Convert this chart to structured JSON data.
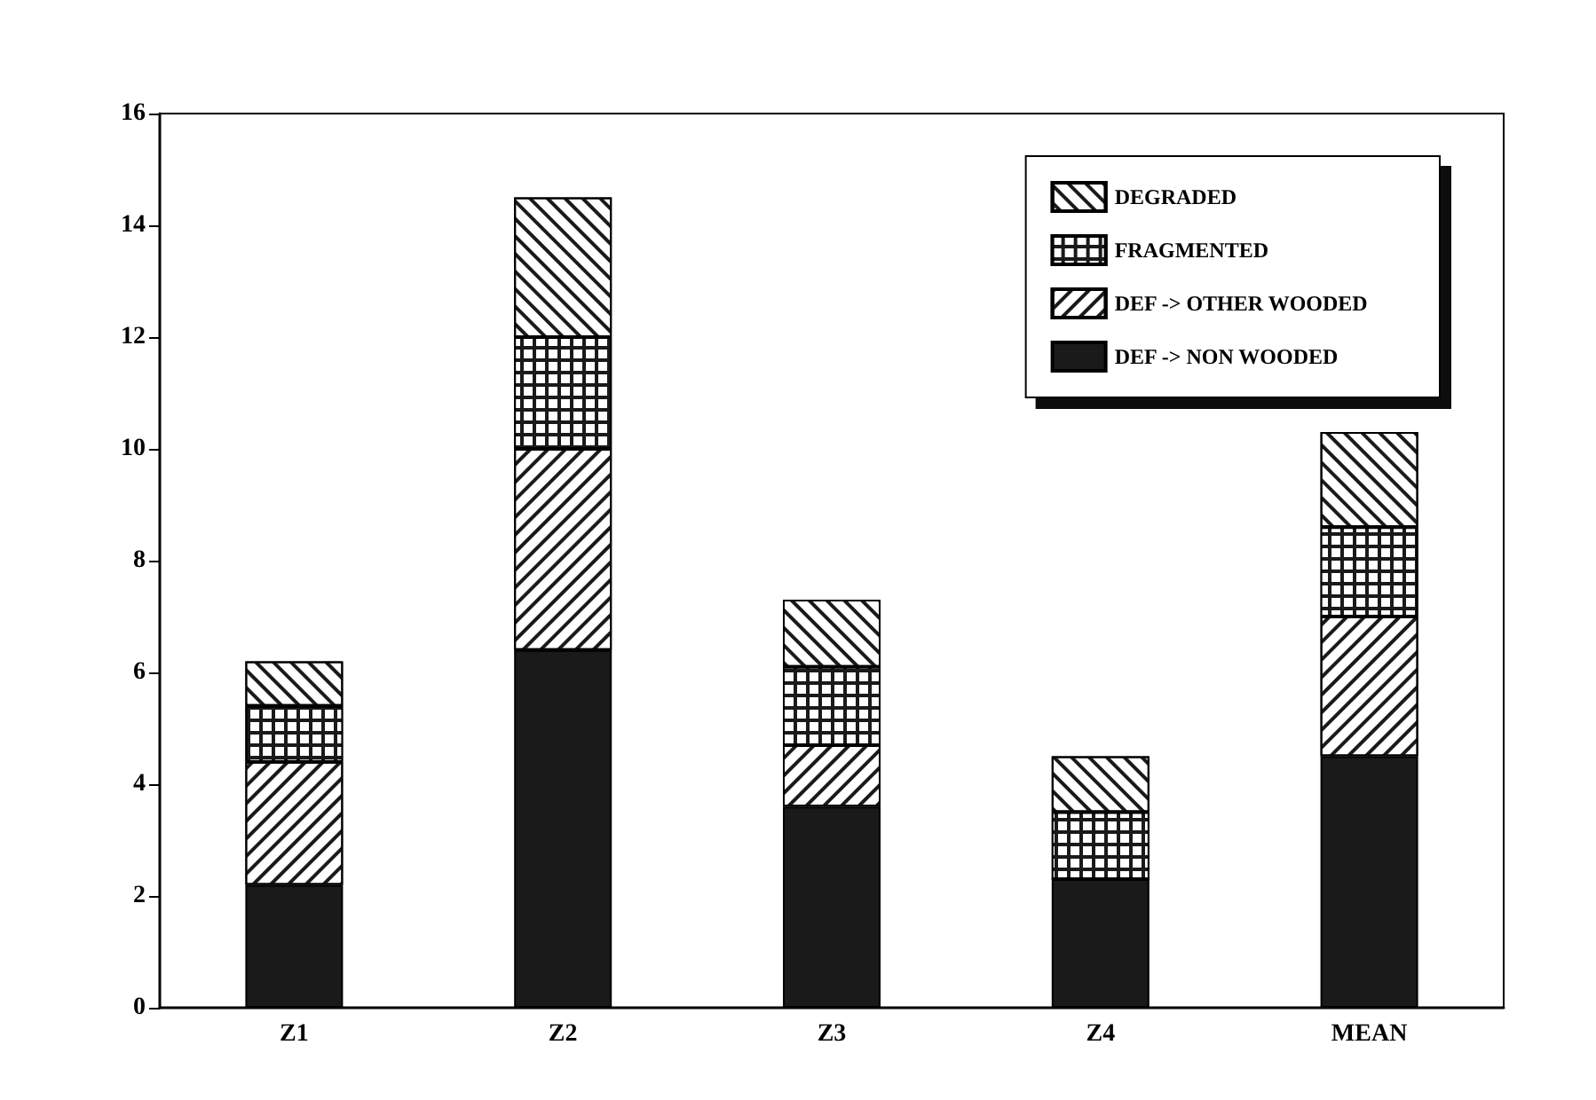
{
  "chart_data": {
    "type": "bar",
    "stacked": true,
    "categories": [
      "Z1",
      "Z2",
      "Z3",
      "Z4",
      "MEAN"
    ],
    "series": [
      {
        "name": "DEF -> NON WOODED",
        "color": "#1a1a1a",
        "values": [
          2.2,
          6.4,
          3.6,
          2.3,
          4.5
        ]
      },
      {
        "name": "DEF -> OTHER WOODED",
        "color": "#ffffff",
        "values": [
          2.2,
          3.6,
          1.1,
          0,
          2.5
        ]
      },
      {
        "name": "FRAGMENTED",
        "color": "#1a1a1a",
        "values": [
          1.0,
          2.0,
          1.4,
          1.2,
          1.6
        ]
      },
      {
        "name": "DEGRADED",
        "color": "#ffffff",
        "values": [
          0.8,
          2.5,
          1.2,
          1.0,
          1.7
        ]
      }
    ],
    "ylim": [
      0,
      16
    ],
    "yticks": [
      0,
      2,
      4,
      6,
      8,
      10,
      12,
      14,
      16
    ],
    "grid": false,
    "legend": "top right"
  }
}
